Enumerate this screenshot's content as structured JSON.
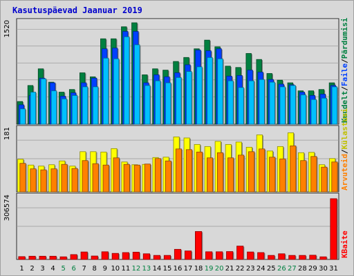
{
  "title": "Kasutuspäevad Jaanuar 2019",
  "colors": {
    "visits": "#008040",
    "files": "#0040ff",
    "hits": "#00c0ff",
    "pages": "#ffff00",
    "sites": "#ff8000",
    "kbytes": "#ff0000",
    "weekday_label": "#000000",
    "weekend_label": "#008040"
  },
  "legend": {
    "top": [
      {
        "text": "Kuudelt",
        "color": "#008040"
      },
      {
        "text": "/",
        "color": "#000000"
      },
      {
        "text": "Faile",
        "color": "#0040ff"
      },
      {
        "text": "/",
        "color": "#000000"
      },
      {
        "text": "Pärdumisi",
        "color": "#008040"
      }
    ],
    "middle": [
      {
        "text": "Arvuteid",
        "color": "#ff8000"
      },
      {
        "text": "/",
        "color": "#000000"
      },
      {
        "text": "Külastusi",
        "color": "#c0c000"
      }
    ],
    "bottom": [
      {
        "text": "KBaite",
        "color": "#ff0000"
      }
    ]
  },
  "chart_data": [
    {
      "type": "bar",
      "panel": "top",
      "ymax_label": "1520",
      "ylim": [
        0,
        1520
      ],
      "categories": [
        "1",
        "2",
        "3",
        "4",
        "5",
        "6",
        "7",
        "8",
        "9",
        "10",
        "11",
        "12",
        "13",
        "14",
        "15",
        "16",
        "17",
        "18",
        "19",
        "20",
        "21",
        "22",
        "23",
        "24",
        "25",
        "26",
        "27",
        "28",
        "29",
        "30",
        "31"
      ],
      "weekend": [
        5,
        6,
        12,
        13,
        19,
        20,
        26,
        27
      ],
      "series": [
        {
          "key": "visits",
          "values": [
            340,
            580,
            830,
            630,
            480,
            520,
            770,
            710,
            1280,
            1280,
            1460,
            1520,
            740,
            830,
            810,
            940,
            1000,
            1130,
            1260,
            1160,
            870,
            850,
            1060,
            970,
            760,
            660,
            620,
            500,
            500,
            520,
            620
          ]
        },
        {
          "key": "files",
          "values": [
            290,
            430,
            690,
            620,
            420,
            470,
            620,
            690,
            1130,
            1140,
            1390,
            1390,
            620,
            740,
            710,
            770,
            890,
            1110,
            1100,
            1130,
            720,
            730,
            810,
            780,
            670,
            600,
            590,
            480,
            430,
            450,
            580
          ]
        },
        {
          "key": "hits",
          "values": [
            230,
            480,
            680,
            500,
            380,
            430,
            560,
            560,
            990,
            980,
            1310,
            1190,
            580,
            650,
            620,
            700,
            790,
            860,
            1000,
            980,
            650,
            550,
            650,
            670,
            630,
            560,
            580,
            440,
            370,
            390,
            560
          ]
        }
      ]
    },
    {
      "type": "bar",
      "panel": "middle",
      "ymax_label": "181",
      "ylim": [
        0,
        181
      ],
      "categories": [
        "1",
        "2",
        "3",
        "4",
        "5",
        "6",
        "7",
        "8",
        "9",
        "10",
        "11",
        "12",
        "13",
        "14",
        "15",
        "16",
        "17",
        "18",
        "19",
        "20",
        "21",
        "22",
        "23",
        "24",
        "25",
        "26",
        "27",
        "28",
        "29",
        "30",
        "31"
      ],
      "series": [
        {
          "key": "pages",
          "values": [
            95,
            78,
            75,
            79,
            90,
            75,
            117,
            117,
            116,
            126,
            87,
            79,
            80,
            100,
            101,
            160,
            157,
            138,
            132,
            147,
            138,
            145,
            130,
            166,
            119,
            132,
            172,
            114,
            115,
            79,
            97
          ]
        },
        {
          "key": "sites",
          "values": [
            83,
            67,
            64,
            67,
            80,
            68,
            91,
            82,
            78,
            99,
            80,
            78,
            81,
            97,
            90,
            125,
            123,
            116,
            99,
            114,
            99,
            107,
            117,
            125,
            101,
            96,
            134,
            91,
            103,
            72,
            87
          ]
        }
      ]
    },
    {
      "type": "bar",
      "panel": "bottom",
      "ymax_label": "306574",
      "ylim": [
        0,
        306574
      ],
      "categories": [
        "1",
        "2",
        "3",
        "4",
        "5",
        "6",
        "7",
        "8",
        "9",
        "10",
        "11",
        "12",
        "13",
        "14",
        "15",
        "16",
        "17",
        "18",
        "19",
        "20",
        "21",
        "22",
        "23",
        "24",
        "25",
        "26",
        "27",
        "28",
        "29",
        "30",
        "31"
      ],
      "series": [
        {
          "key": "kbytes",
          "values": [
            14000,
            16000,
            16000,
            16000,
            13000,
            24000,
            37000,
            17000,
            38000,
            30000,
            34000,
            36000,
            28000,
            20000,
            20000,
            50000,
            42000,
            138000,
            38000,
            38000,
            39000,
            66000,
            37000,
            34000,
            20000,
            28000,
            20000,
            20000,
            21000,
            13000,
            300000
          ]
        }
      ]
    }
  ]
}
